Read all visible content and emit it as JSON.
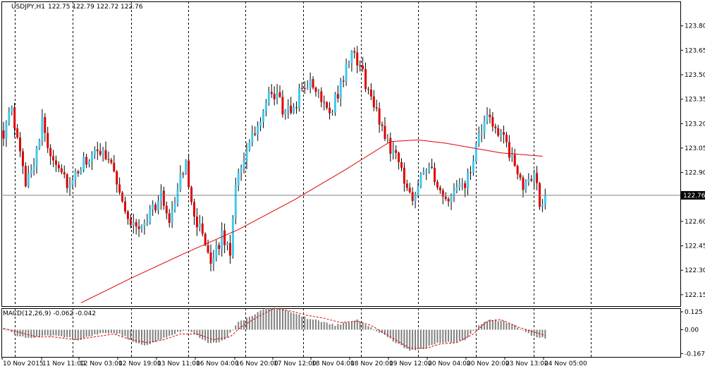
{
  "window": {
    "symbol_label": "USDJPY,H1",
    "ohlc_label": "122.75 122.79 122.72 122.76"
  },
  "colors": {
    "bull": "#41c8ee",
    "bear": "#e00000",
    "wick": "#000000",
    "ma": "#e00000",
    "macd_hist": "#808080",
    "macd_signal": "#e00000",
    "grid": "#000000",
    "price_line": "#808080",
    "price_tag_bg": "#000000",
    "price_tag_fg": "#ffffff"
  },
  "chart_data": [
    {
      "type": "candlestick",
      "title": "",
      "ylim": [
        122.08,
        123.95
      ],
      "y_ticks": [
        "123.80",
        "123.65",
        "123.50",
        "123.35",
        "123.20",
        "123.05",
        "122.90",
        "122.76",
        "122.60",
        "122.45",
        "122.30",
        "122.15"
      ],
      "y_tick_values": [
        123.8,
        123.65,
        123.5,
        123.35,
        123.2,
        123.05,
        122.9,
        122.76,
        122.6,
        122.45,
        122.3,
        122.15
      ],
      "current_price": 122.76,
      "current_price_label": "122.76",
      "x_labels": [
        "10 Nov 2015",
        "11 Nov 11:00",
        "12 Nov 03:00",
        "12 Nov 19:00",
        "13 Nov 11:00",
        "16 Nov 04:00",
        "16 Nov 20:00",
        "17 Nov 12:00",
        "18 Nov 04:00",
        "18 Nov 20:00",
        "19 Nov 12:00",
        "20 Nov 04:00",
        "20 Nov 20:00",
        "23 Nov 13:00",
        "24 Nov 05:00"
      ],
      "grid_vertical": "dashed",
      "candle_keypoints": [
        [
          0,
          123.15
        ],
        [
          3,
          123.27
        ],
        [
          6,
          123.0
        ],
        [
          8,
          122.85
        ],
        [
          11,
          122.98
        ],
        [
          14,
          123.2
        ],
        [
          17,
          123.02
        ],
        [
          20,
          122.95
        ],
        [
          24,
          122.8
        ],
        [
          27,
          122.9
        ],
        [
          30,
          122.98
        ],
        [
          33,
          123.0
        ],
        [
          36,
          123.05
        ],
        [
          40,
          122.92
        ],
        [
          44,
          122.65
        ],
        [
          48,
          122.55
        ],
        [
          51,
          122.6
        ],
        [
          54,
          122.68
        ],
        [
          57,
          122.75
        ],
        [
          60,
          122.62
        ],
        [
          63,
          122.8
        ],
        [
          66,
          122.95
        ],
        [
          69,
          122.65
        ],
        [
          72,
          122.5
        ],
        [
          75,
          122.3
        ],
        [
          77,
          122.45
        ],
        [
          79,
          122.5
        ],
        [
          82,
          122.42
        ],
        [
          84,
          122.85
        ],
        [
          87,
          123.0
        ],
        [
          90,
          123.1
        ],
        [
          93,
          123.22
        ],
        [
          96,
          123.35
        ],
        [
          99,
          123.38
        ],
        [
          102,
          123.25
        ],
        [
          105,
          123.3
        ],
        [
          108,
          123.42
        ],
        [
          110,
          123.45
        ],
        [
          113,
          123.4
        ],
        [
          116,
          123.35
        ],
        [
          118,
          123.28
        ],
        [
          121,
          123.38
        ],
        [
          124,
          123.55
        ],
        [
          127,
          123.63
        ],
        [
          129,
          123.55
        ],
        [
          131,
          123.45
        ],
        [
          134,
          123.3
        ],
        [
          137,
          123.18
        ],
        [
          140,
          123.05
        ],
        [
          143,
          123.0
        ],
        [
          145,
          122.82
        ],
        [
          148,
          122.75
        ],
        [
          151,
          122.9
        ],
        [
          154,
          122.95
        ],
        [
          157,
          122.78
        ],
        [
          160,
          122.72
        ],
        [
          163,
          122.78
        ],
        [
          166,
          122.8
        ],
        [
          169,
          122.9
        ],
        [
          172,
          123.1
        ],
        [
          174,
          123.22
        ],
        [
          177,
          123.2
        ],
        [
          180,
          123.15
        ],
        [
          183,
          123.0
        ],
        [
          186,
          122.9
        ],
        [
          189,
          122.8
        ],
        [
          192,
          122.92
        ],
        [
          193,
          122.85
        ],
        [
          194,
          122.68
        ],
        [
          195,
          122.74
        ],
        [
          196,
          122.76
        ]
      ],
      "ma_points": [
        [
          28,
          122.1
        ],
        [
          46,
          122.25
        ],
        [
          65,
          122.4
        ],
        [
          85,
          122.55
        ],
        [
          105,
          122.73
        ],
        [
          124,
          122.92
        ],
        [
          140,
          123.09
        ],
        [
          150,
          123.1
        ],
        [
          160,
          123.08
        ],
        [
          170,
          123.05
        ],
        [
          180,
          123.02
        ],
        [
          195,
          123.0
        ]
      ]
    },
    {
      "type": "histogram+line",
      "title": "MACD(12,26,9) -0.062 -0.042",
      "ylim": [
        -0.19,
        0.15
      ],
      "y_ticks": [
        "0.125",
        "0.00",
        "-0.167"
      ],
      "y_tick_values": [
        0.125,
        0.0,
        -0.167
      ],
      "hist_keypoints": [
        [
          0,
          0.01
        ],
        [
          5,
          -0.04
        ],
        [
          10,
          -0.06
        ],
        [
          16,
          -0.04
        ],
        [
          22,
          -0.05
        ],
        [
          27,
          -0.07
        ],
        [
          32,
          -0.04
        ],
        [
          37,
          -0.02
        ],
        [
          42,
          -0.03
        ],
        [
          48,
          -0.09
        ],
        [
          52,
          -0.11
        ],
        [
          57,
          -0.07
        ],
        [
          63,
          -0.02
        ],
        [
          66,
          0.0
        ],
        [
          70,
          -0.04
        ],
        [
          74,
          -0.09
        ],
        [
          78,
          -0.09
        ],
        [
          81,
          -0.05
        ],
        [
          85,
          0.05
        ],
        [
          90,
          0.1
        ],
        [
          95,
          0.15
        ],
        [
          100,
          0.15
        ],
        [
          105,
          0.12
        ],
        [
          110,
          0.08
        ],
        [
          115,
          0.06
        ],
        [
          120,
          0.03
        ],
        [
          124,
          0.05
        ],
        [
          128,
          0.07
        ],
        [
          132,
          0.03
        ],
        [
          137,
          -0.03
        ],
        [
          142,
          -0.09
        ],
        [
          147,
          -0.15
        ],
        [
          152,
          -0.13
        ],
        [
          157,
          -0.09
        ],
        [
          162,
          -0.09
        ],
        [
          167,
          -0.07
        ],
        [
          172,
          0.03
        ],
        [
          176,
          0.07
        ],
        [
          181,
          0.06
        ],
        [
          186,
          0.02
        ],
        [
          191,
          -0.04
        ],
        [
          196,
          -0.06
        ]
      ],
      "signal_keypoints": [
        [
          0,
          0.01
        ],
        [
          6,
          -0.02
        ],
        [
          12,
          -0.05
        ],
        [
          18,
          -0.05
        ],
        [
          26,
          -0.07
        ],
        [
          33,
          -0.05
        ],
        [
          40,
          -0.03
        ],
        [
          46,
          -0.07
        ],
        [
          52,
          -0.09
        ],
        [
          58,
          -0.07
        ],
        [
          64,
          -0.03
        ],
        [
          70,
          -0.03
        ],
        [
          76,
          -0.07
        ],
        [
          82,
          -0.05
        ],
        [
          86,
          0.02
        ],
        [
          92,
          0.09
        ],
        [
          98,
          0.15
        ],
        [
          104,
          0.13
        ],
        [
          110,
          0.1
        ],
        [
          116,
          0.08
        ],
        [
          122,
          0.05
        ],
        [
          128,
          0.06
        ],
        [
          133,
          0.03
        ],
        [
          140,
          -0.05
        ],
        [
          147,
          -0.13
        ],
        [
          153,
          -0.13
        ],
        [
          158,
          -0.1
        ],
        [
          164,
          -0.09
        ],
        [
          170,
          -0.03
        ],
        [
          175,
          0.06
        ],
        [
          180,
          0.07
        ],
        [
          186,
          0.02
        ],
        [
          196,
          -0.04
        ]
      ]
    }
  ]
}
